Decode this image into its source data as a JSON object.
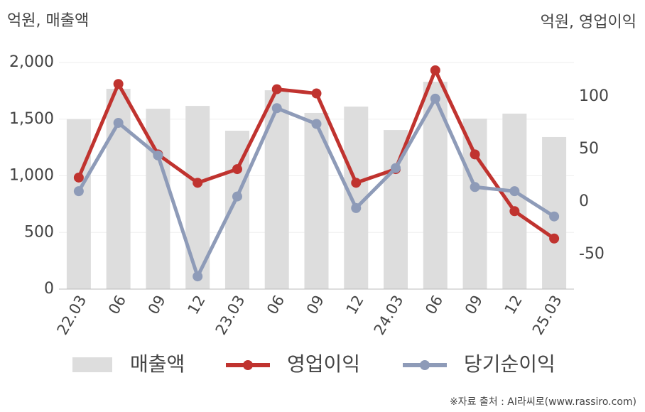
{
  "chart_data": {
    "type": "combo",
    "y_label": "억원, 매출액",
    "y2_label": "억원, 영업이익",
    "source": "※자료 출처 : AI라씨로(www.rassiro.com)",
    "categories": [
      "22.03",
      "06",
      "09",
      "12",
      "23.03",
      "06",
      "09",
      "12",
      "24.03",
      "06",
      "09",
      "12",
      "25.03"
    ],
    "series": [
      {
        "name": "매출액",
        "type": "bar",
        "color": "#dddddd",
        "values": [
          1500,
          1768,
          1592,
          1617,
          1398,
          1755,
          1555,
          1611,
          1404,
          1830,
          1505,
          1549,
          1342
        ]
      },
      {
        "name": "영업이익",
        "type": "line",
        "axis": "y2",
        "color": "#c0332f",
        "values": [
          23,
          112,
          45,
          18,
          31,
          107,
          103,
          18,
          31,
          125,
          45,
          -9,
          -35
        ]
      },
      {
        "name": "당기순이익",
        "type": "line",
        "axis": "y2",
        "color": "#8e9bb8",
        "values": [
          10,
          75,
          44,
          -71,
          5,
          89,
          74,
          -6,
          32,
          98,
          14,
          10,
          -14
        ]
      }
    ],
    "ylim": [
      0,
      2000
    ],
    "yticks": [
      0,
      500,
      {
        "value": 1000,
        "label": "1,000"
      },
      {
        "value": 1500,
        "label": "1,500"
      },
      {
        "value": 2000,
        "label": "2,000"
      }
    ],
    "y2lim": [
      -83.1,
      132.4
    ],
    "y2ticks": [
      -50,
      0,
      50,
      100
    ],
    "grid": true
  }
}
